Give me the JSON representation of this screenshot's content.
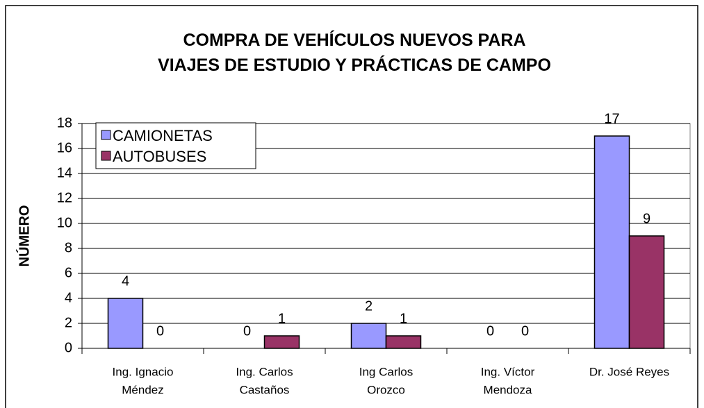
{
  "chart_data": {
    "type": "bar",
    "title": "COMPRA DE VEHÍCULOS NUEVOS PARA VIAJES DE ESTUDIO Y PRÁCTICAS DE CAMPO",
    "y_label": "NÚMERO",
    "categories": [
      [
        "Ing. Ignacio",
        "Méndez"
      ],
      [
        "Ing. Carlos",
        "Castaños"
      ],
      [
        "Ing Carlos",
        "Orozco"
      ],
      [
        "Ing. Víctor",
        "Mendoza"
      ],
      [
        "Dr. José Reyes"
      ]
    ],
    "series": [
      {
        "name": "CAMIONETAS",
        "color": "#9999ff",
        "values": [
          4,
          0,
          2,
          0,
          17
        ]
      },
      {
        "name": "AUTOBUSES",
        "color": "#993366",
        "values": [
          0,
          1,
          1,
          0,
          9
        ]
      }
    ],
    "ylim": [
      0,
      18
    ],
    "yticks": [
      0,
      2,
      4,
      6,
      8,
      10,
      12,
      14,
      16,
      18
    ],
    "grid": true,
    "legend": "upper left"
  }
}
